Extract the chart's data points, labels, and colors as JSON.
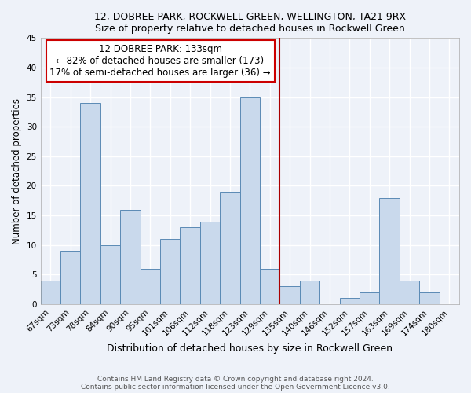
{
  "title": "12, DOBREE PARK, ROCKWELL GREEN, WELLINGTON, TA21 9RX",
  "subtitle": "Size of property relative to detached houses in Rockwell Green",
  "xlabel": "Distribution of detached houses by size in Rockwell Green",
  "ylabel": "Number of detached properties",
  "categories": [
    "67sqm",
    "73sqm",
    "78sqm",
    "84sqm",
    "90sqm",
    "95sqm",
    "101sqm",
    "106sqm",
    "112sqm",
    "118sqm",
    "123sqm",
    "129sqm",
    "135sqm",
    "140sqm",
    "146sqm",
    "152sqm",
    "157sqm",
    "163sqm",
    "169sqm",
    "174sqm",
    "180sqm"
  ],
  "values": [
    4,
    9,
    34,
    10,
    16,
    6,
    11,
    13,
    14,
    19,
    35,
    6,
    3,
    4,
    0,
    1,
    2,
    18,
    4,
    2,
    0
  ],
  "bar_color": "#c9d9ec",
  "bar_edge_color": "#5a8ab5",
  "background_color": "#eef2f9",
  "grid_color": "#ffffff",
  "vline_x": 11.5,
  "vline_color": "#aa0000",
  "annotation_title": "12 DOBREE PARK: 133sqm",
  "annotation_line1": "← 82% of detached houses are smaller (173)",
  "annotation_line2": "17% of semi-detached houses are larger (36) →",
  "annotation_box_color": "#ffffff",
  "annotation_box_edge": "#cc0000",
  "ylim": [
    0,
    45
  ],
  "yticks": [
    0,
    5,
    10,
    15,
    20,
    25,
    30,
    35,
    40,
    45
  ],
  "footer1": "Contains HM Land Registry data © Crown copyright and database right 2024.",
  "footer2": "Contains public sector information licensed under the Open Government Licence v3.0."
}
